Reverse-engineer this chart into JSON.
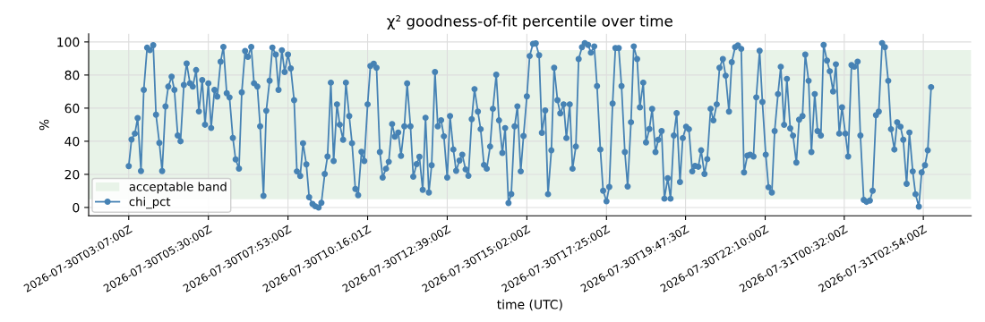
{
  "chart_data": {
    "type": "line",
    "title": "χ² goodness-of-fit percentile over time",
    "xlabel": "time (UTC)",
    "ylabel": "%",
    "x": [
      "2026-07-30T03:07",
      "2026-07-30T03:12",
      "2026-07-30T03:18",
      "2026-07-30T03:23",
      "2026-07-30T03:29",
      "2026-07-30T03:34",
      "2026-07-30T03:40",
      "2026-07-30T03:45",
      "2026-07-30T03:51",
      "2026-07-30T03:56",
      "2026-07-30T04:02",
      "2026-07-30T04:07",
      "2026-07-30T04:13",
      "2026-07-30T04:18",
      "2026-07-30T04:24",
      "2026-07-30T04:29",
      "2026-07-30T04:35",
      "2026-07-30T04:40",
      "2026-07-30T04:46",
      "2026-07-30T04:51",
      "2026-07-30T04:57",
      "2026-07-30T05:02",
      "2026-07-30T05:08",
      "2026-07-30T05:13",
      "2026-07-30T05:19",
      "2026-07-30T05:24",
      "2026-07-30T05:30",
      "2026-07-30T05:35",
      "2026-07-30T05:41",
      "2026-07-30T05:46",
      "2026-07-30T05:52",
      "2026-07-30T05:57",
      "2026-07-30T06:03",
      "2026-07-30T06:08",
      "2026-07-30T06:14",
      "2026-07-30T06:19",
      "2026-07-30T06:25",
      "2026-07-30T06:30",
      "2026-07-30T06:36",
      "2026-07-30T06:41",
      "2026-07-30T06:47",
      "2026-07-30T06:52",
      "2026-07-30T06:58",
      "2026-07-30T07:03",
      "2026-07-30T07:09",
      "2026-07-30T07:14",
      "2026-07-30T07:20",
      "2026-07-30T07:25",
      "2026-07-30T07:31",
      "2026-07-30T07:36",
      "2026-07-30T07:42",
      "2026-07-30T07:47",
      "2026-07-30T07:53",
      "2026-07-30T07:58",
      "2026-07-30T08:04",
      "2026-07-30T08:09",
      "2026-07-30T08:15",
      "2026-07-30T08:20",
      "2026-07-30T08:26",
      "2026-07-30T08:31",
      "2026-07-30T08:37",
      "2026-07-30T08:42",
      "2026-07-30T08:48",
      "2026-07-30T08:53",
      "2026-07-30T08:59",
      "2026-07-30T09:04",
      "2026-07-30T09:10",
      "2026-07-30T09:15",
      "2026-07-30T09:21",
      "2026-07-30T09:26",
      "2026-07-30T09:32",
      "2026-07-30T09:37",
      "2026-07-30T09:43",
      "2026-07-30T09:48",
      "2026-07-30T09:54",
      "2026-07-30T09:59",
      "2026-07-30T10:05",
      "2026-07-30T10:10",
      "2026-07-30T10:16",
      "2026-07-30T10:21",
      "2026-07-30T10:27",
      "2026-07-30T10:32",
      "2026-07-30T10:38",
      "2026-07-30T10:43",
      "2026-07-30T10:49",
      "2026-07-30T10:54",
      "2026-07-30T11:00",
      "2026-07-30T11:05",
      "2026-07-30T11:11",
      "2026-07-30T11:16",
      "2026-07-30T11:22",
      "2026-07-30T11:27",
      "2026-07-30T11:33",
      "2026-07-30T11:38",
      "2026-07-30T11:44",
      "2026-07-30T11:49",
      "2026-07-30T11:55",
      "2026-07-30T12:00",
      "2026-07-30T12:06",
      "2026-07-30T12:11",
      "2026-07-30T12:17",
      "2026-07-30T12:22",
      "2026-07-30T12:28",
      "2026-07-30T12:33",
      "2026-07-30T12:39",
      "2026-07-30T12:44",
      "2026-07-30T12:50",
      "2026-07-30T12:55",
      "2026-07-30T13:01",
      "2026-07-30T13:06",
      "2026-07-30T13:12",
      "2026-07-30T13:17",
      "2026-07-30T13:23",
      "2026-07-30T13:28",
      "2026-07-30T13:34",
      "2026-07-30T13:39",
      "2026-07-30T13:45",
      "2026-07-30T13:50",
      "2026-07-30T13:56",
      "2026-07-30T14:01",
      "2026-07-30T14:07",
      "2026-07-30T14:12",
      "2026-07-30T14:18",
      "2026-07-30T14:23",
      "2026-07-30T14:29",
      "2026-07-30T14:34",
      "2026-07-30T14:40",
      "2026-07-30T14:45",
      "2026-07-30T14:51",
      "2026-07-30T14:56",
      "2026-07-30T15:02",
      "2026-07-30T15:07",
      "2026-07-30T15:13",
      "2026-07-30T15:18",
      "2026-07-30T15:24",
      "2026-07-30T15:29",
      "2026-07-30T15:35",
      "2026-07-30T15:40",
      "2026-07-30T15:46",
      "2026-07-30T15:51",
      "2026-07-30T15:57",
      "2026-07-30T16:02",
      "2026-07-30T16:08",
      "2026-07-30T16:13",
      "2026-07-30T16:19",
      "2026-07-30T16:24",
      "2026-07-30T16:30",
      "2026-07-30T16:35",
      "2026-07-30T16:41",
      "2026-07-30T16:46",
      "2026-07-30T16:52",
      "2026-07-30T16:57",
      "2026-07-30T17:03",
      "2026-07-30T17:08",
      "2026-07-30T17:14",
      "2026-07-30T17:19",
      "2026-07-30T17:25",
      "2026-07-30T17:30",
      "2026-07-30T17:36",
      "2026-07-30T17:41",
      "2026-07-30T17:47",
      "2026-07-30T17:52",
      "2026-07-30T17:58",
      "2026-07-30T18:03",
      "2026-07-30T18:09",
      "2026-07-30T18:14",
      "2026-07-30T18:20",
      "2026-07-30T18:25",
      "2026-07-30T18:31",
      "2026-07-30T18:36",
      "2026-07-30T18:42",
      "2026-07-30T18:47",
      "2026-07-30T18:53",
      "2026-07-30T18:58",
      "2026-07-30T19:04",
      "2026-07-30T19:09",
      "2026-07-30T19:15",
      "2026-07-30T19:20",
      "2026-07-30T19:26",
      "2026-07-30T19:31",
      "2026-07-30T19:37",
      "2026-07-30T19:42",
      "2026-07-30T19:48",
      "2026-07-30T19:53",
      "2026-07-30T19:59",
      "2026-07-30T20:04",
      "2026-07-30T20:10",
      "2026-07-30T20:15",
      "2026-07-30T20:21",
      "2026-07-30T20:26",
      "2026-07-30T20:32",
      "2026-07-30T20:37",
      "2026-07-30T20:43",
      "2026-07-30T20:48",
      "2026-07-30T20:54",
      "2026-07-30T20:59",
      "2026-07-30T21:05",
      "2026-07-30T21:10",
      "2026-07-30T21:16",
      "2026-07-30T21:21",
      "2026-07-30T21:27",
      "2026-07-30T21:32",
      "2026-07-30T21:38",
      "2026-07-30T21:43",
      "2026-07-30T21:49",
      "2026-07-30T21:54",
      "2026-07-30T22:00",
      "2026-07-30T22:05",
      "2026-07-30T22:11",
      "2026-07-30T22:16",
      "2026-07-30T22:22",
      "2026-07-30T22:27",
      "2026-07-30T22:33",
      "2026-07-30T22:38",
      "2026-07-30T22:44",
      "2026-07-30T22:49",
      "2026-07-30T22:55",
      "2026-07-30T23:00",
      "2026-07-30T23:06",
      "2026-07-30T23:11",
      "2026-07-30T23:17",
      "2026-07-30T23:22",
      "2026-07-30T23:28",
      "2026-07-30T23:33",
      "2026-07-30T23:39",
      "2026-07-30T23:44",
      "2026-07-30T23:50",
      "2026-07-30T23:55",
      "2026-07-31T00:01",
      "2026-07-31T00:06",
      "2026-07-31T00:12",
      "2026-07-31T00:17",
      "2026-07-31T00:23",
      "2026-07-31T00:28",
      "2026-07-31T00:34",
      "2026-07-31T00:39",
      "2026-07-31T00:45",
      "2026-07-31T00:50",
      "2026-07-31T00:56",
      "2026-07-31T01:01",
      "2026-07-31T01:07",
      "2026-07-31T01:12",
      "2026-07-31T01:18",
      "2026-07-31T01:23",
      "2026-07-31T01:29",
      "2026-07-31T01:34",
      "2026-07-31T01:40",
      "2026-07-31T01:45",
      "2026-07-31T01:51",
      "2026-07-31T01:56",
      "2026-07-31T02:02",
      "2026-07-31T02:07",
      "2026-07-31T02:13",
      "2026-07-31T02:18",
      "2026-07-31T02:24",
      "2026-07-31T02:29",
      "2026-07-31T02:35",
      "2026-07-31T02:40",
      "2026-07-31T02:46",
      "2026-07-31T02:51",
      "2026-07-31T02:57",
      "2026-07-31T03:02",
      "2026-07-31T03:08"
    ],
    "series": [
      {
        "name": "chi_pct",
        "color": "#4682b4",
        "values": [
          25,
          41,
          44.6,
          54,
          22,
          71,
          96.5,
          95,
          98,
          56,
          39,
          22,
          61,
          73,
          79,
          71,
          43.5,
          40,
          74,
          87,
          75,
          73,
          83,
          58,
          77,
          50,
          75,
          48,
          71,
          67,
          88,
          97,
          69,
          66.5,
          42,
          29,
          23.5,
          69.5,
          94.5,
          91,
          97,
          75,
          73,
          49,
          7,
          58.4,
          76.6,
          96.6,
          92.4,
          71,
          95,
          81.8,
          92.4,
          84,
          64.8,
          21.8,
          19,
          38.8,
          26,
          6.2,
          2.1,
          0.7,
          0,
          2.8,
          20.2,
          30.8,
          75.4,
          28.1,
          62.3,
          50,
          40.9,
          75.4,
          55.2,
          38.8,
          11.2,
          7.4,
          33.6,
          28.1,
          62.3,
          85.5,
          86.9,
          84.4,
          33.5,
          18.1,
          23.4,
          27.6,
          50.4,
          42.8,
          45.3,
          31.2,
          49,
          74.9,
          49,
          18.6,
          26.2,
          30.6,
          10.6,
          54.2,
          9,
          25.5,
          81.8,
          49,
          52.7,
          43,
          18.1,
          55.2,
          35,
          22.1,
          28.3,
          31.9,
          23,
          19.1,
          53.3,
          71.5,
          57.9,
          47.3,
          25.7,
          23.4,
          36.8,
          59.6,
          80.2,
          52.6,
          32.9,
          48,
          2.7,
          8.1,
          49,
          61.1,
          21.8,
          43.2,
          67.1,
          91.5,
          98.8,
          99.1,
          92,
          45.1,
          58.6,
          8,
          34.5,
          84.4,
          64.8,
          56.8,
          62.3,
          41.9,
          62.3,
          23.4,
          36.8,
          89.7,
          96.8,
          99.3,
          98.2,
          93.5,
          97.3,
          73.3,
          35,
          10.1,
          3.7,
          12.4,
          62.8,
          96.3,
          96.3,
          73.3,
          33.5,
          12.7,
          51.5,
          97.3,
          89.7,
          60.5,
          75.4,
          39.3,
          47.4,
          59.5,
          33.5,
          40.9,
          46.2,
          5.3,
          17.7,
          5.3,
          43.5,
          57,
          15.4,
          41.9,
          48.8,
          47.3,
          21.8,
          25.1,
          24.6,
          34.5,
          20.2,
          29.2,
          59.6,
          52.6,
          62.3,
          84.4,
          89.7,
          79.6,
          57.9,
          87.8,
          96.8,
          97.9,
          95.8,
          21.2,
          31.3,
          31.9,
          30.8,
          66.5,
          94.7,
          63.7,
          31.9,
          12.2,
          9,
          46.2,
          68.5,
          85,
          49.9,
          77.7,
          47.8,
          43.4,
          27.1,
          53.1,
          55.2,
          92.4,
          76.5,
          33.5,
          68.5,
          46.2,
          43.5,
          98.2,
          88.7,
          82.3,
          70.1,
          86.5,
          44.6,
          60.5,
          44.6,
          30.8,
          86,
          85,
          88.1,
          43.5,
          4.6,
          3.4,
          4.2,
          10.1,
          55.8,
          57.9,
          99.3,
          96.8,
          76.5,
          47.3,
          35,
          51.5,
          48.8,
          40.9,
          14.3,
          45.3,
          21.8,
          8,
          0.5,
          21.2,
          25.5,
          34.5,
          72.7
        ]
      }
    ],
    "bands": [
      {
        "axis": "y",
        "from": 5,
        "to": 95,
        "label": "acceptable band",
        "color": "#e8f3e8"
      }
    ],
    "xlim": [
      "2026-07-30T01:55",
      "2026-07-31T04:20"
    ],
    "xticks": [
      {
        "value": "2026-07-30T03:07",
        "label": "2026-07-30T03:07:00Z"
      },
      {
        "value": "2026-07-30T05:30",
        "label": "2026-07-30T05:30:00Z"
      },
      {
        "value": "2026-07-30T07:53",
        "label": "2026-07-30T07:53:00Z"
      },
      {
        "value": "2026-07-30T10:16",
        "label": "2026-07-30T10:16:01Z"
      },
      {
        "value": "2026-07-30T12:39",
        "label": "2026-07-30T12:39:00Z"
      },
      {
        "value": "2026-07-30T15:02",
        "label": "2026-07-30T15:02:00Z"
      },
      {
        "value": "2026-07-30T17:25",
        "label": "2026-07-30T17:25:00Z"
      },
      {
        "value": "2026-07-30T19:47",
        "label": "2026-07-30T19:47:30Z"
      },
      {
        "value": "2026-07-30T22:10",
        "label": "2026-07-30T22:10:00Z"
      },
      {
        "value": "2026-07-31T00:32",
        "label": "2026-07-31T00:32:00Z"
      },
      {
        "value": "2026-07-31T02:54",
        "label": "2026-07-31T02:54:00Z"
      }
    ],
    "ylim": [
      -5,
      104.9
    ],
    "yticks": [
      0,
      20,
      40,
      60,
      80,
      100
    ],
    "grid": true,
    "legend": "lower left",
    "marker": "circle",
    "line_style": "solid"
  }
}
